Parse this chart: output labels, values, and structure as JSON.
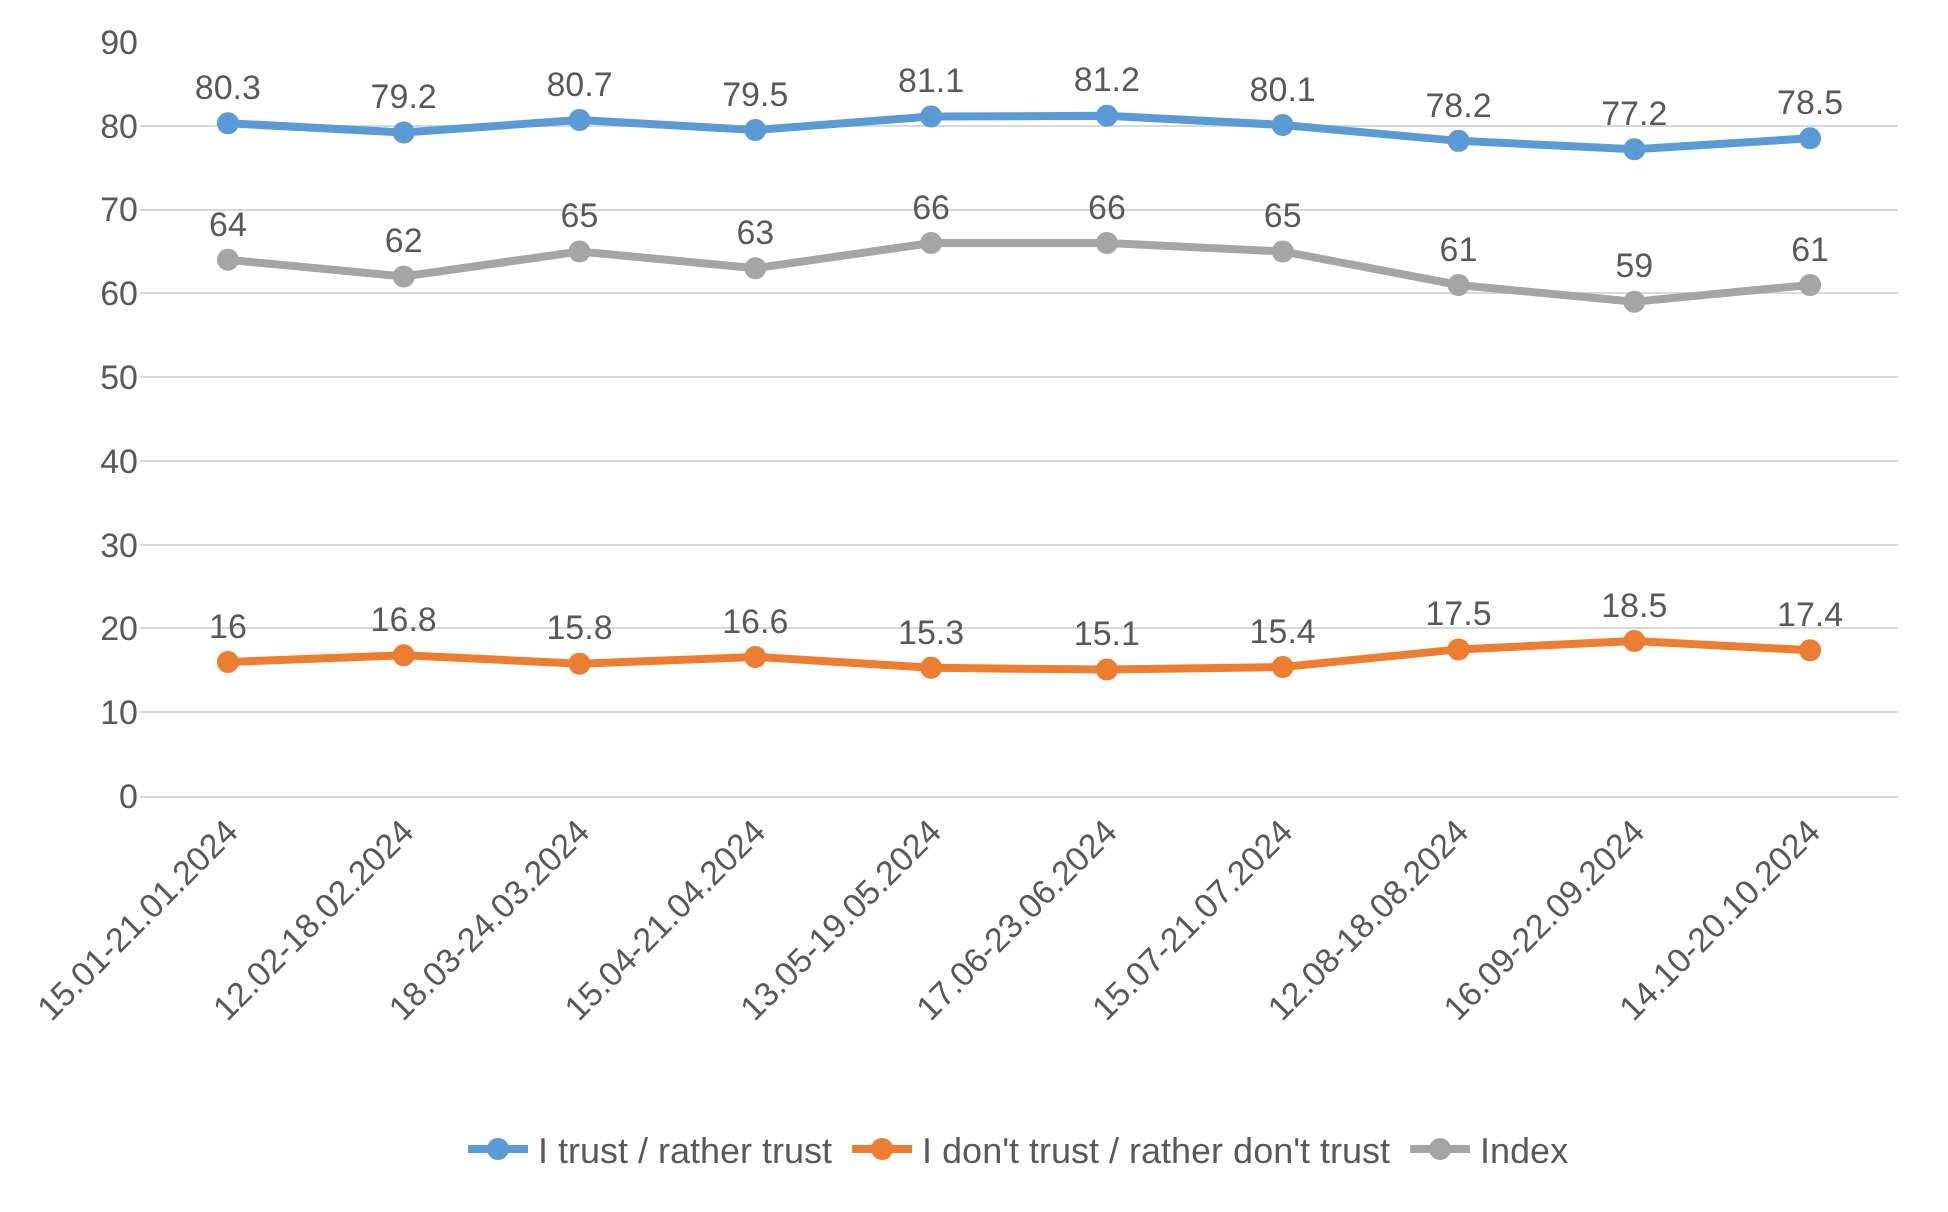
{
  "chart_data": {
    "type": "line",
    "categories": [
      "15.01-21.01.2024",
      "12.02-18.02.2024",
      "18.03-24.03.2024",
      "15.04-21.04.2024",
      "13.05-19.05.2024",
      "17.06-23.06.2024",
      "15.07-21.07.2024",
      "12.08-18.08.2024",
      "16.09-22.09.2024",
      "14.10-20.10.2024"
    ],
    "series": [
      {
        "name": "I trust / rather trust",
        "color": "#5b9bd5",
        "values": [
          80.3,
          79.2,
          80.7,
          79.5,
          81.1,
          81.2,
          80.1,
          78.2,
          77.2,
          78.5
        ]
      },
      {
        "name": "I don't trust / rather don't trust",
        "color": "#ed7d31",
        "values": [
          16,
          16.8,
          15.8,
          16.6,
          15.3,
          15.1,
          15.4,
          17.5,
          18.5,
          17.4
        ]
      },
      {
        "name": "Index",
        "color": "#a5a5a5",
        "values": [
          64,
          62,
          65,
          63,
          66,
          66,
          65,
          61,
          59,
          61
        ]
      }
    ],
    "ylim": [
      0,
      90
    ],
    "yticks": [
      0,
      10,
      20,
      30,
      40,
      50,
      60,
      70,
      80,
      90
    ],
    "grid": "y",
    "legend": "bottom",
    "marker": "circle",
    "line_style": "solid",
    "data_labels": true
  }
}
